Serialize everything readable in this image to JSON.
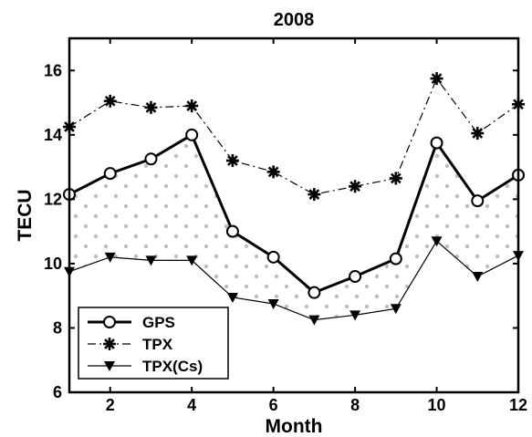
{
  "chart_data": {
    "type": "line",
    "title": "2008",
    "xlabel": "Month",
    "ylabel": "TECU",
    "xlim": [
      1,
      12
    ],
    "ylim": [
      6,
      17
    ],
    "xticks": [
      2,
      4,
      6,
      8,
      10,
      12
    ],
    "yticks": [
      6,
      8,
      10,
      12,
      14,
      16
    ],
    "grid": false,
    "legend_position": "bottom-left",
    "x": [
      1,
      2,
      3,
      4,
      5,
      6,
      7,
      8,
      9,
      10,
      11,
      12
    ],
    "series": [
      {
        "name": "GPS",
        "values": [
          12.15,
          12.8,
          13.25,
          14.0,
          11.0,
          10.2,
          9.1,
          9.6,
          10.15,
          13.75,
          11.95,
          12.75
        ],
        "style": "solid-thick",
        "marker": "circle-open",
        "color": "#000000"
      },
      {
        "name": "TPX",
        "values": [
          14.25,
          15.05,
          14.85,
          14.9,
          13.2,
          12.85,
          12.15,
          12.4,
          12.65,
          15.75,
          14.05,
          14.95
        ],
        "style": "dash-dot",
        "marker": "asterisk",
        "color": "#000000"
      },
      {
        "name": "TPX(Cs)",
        "values": [
          9.75,
          10.2,
          10.1,
          10.1,
          8.95,
          8.75,
          8.25,
          8.4,
          8.6,
          10.7,
          9.6,
          10.25
        ],
        "style": "solid-thin",
        "marker": "triangle-down",
        "color": "#000000"
      }
    ],
    "fill_between": [
      "GPS",
      "TPX(Cs)"
    ]
  }
}
